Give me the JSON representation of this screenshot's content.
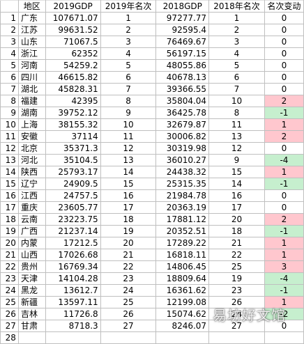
{
  "header": [
    "",
    "地区",
    "2019GDP",
    "2019年名次",
    "2018GDP",
    "2018年名次",
    "名次变动"
  ],
  "rows": [
    [
      "1",
      "广东",
      "107671.07",
      "1",
      "97277.77",
      "1",
      "0",
      ""
    ],
    [
      "2",
      "江苏",
      "99631.52",
      "2",
      "92595.4",
      "2",
      "0",
      ""
    ],
    [
      "3",
      "山东",
      "71067.5",
      "3",
      "76469.67",
      "3",
      "0",
      ""
    ],
    [
      "4",
      "浙江",
      "62352",
      "4",
      "56197.15",
      "4",
      "0",
      ""
    ],
    [
      "5",
      "河南",
      "54259.2",
      "5",
      "48055.86",
      "5",
      "0",
      ""
    ],
    [
      "6",
      "四川",
      "46615.82",
      "6",
      "40678.13",
      "6",
      "0",
      ""
    ],
    [
      "7",
      "湖北",
      "45828.31",
      "7",
      "39366.55",
      "7",
      "0",
      ""
    ],
    [
      "8",
      "福建",
      "42395",
      "8",
      "35804.04",
      "10",
      "2",
      "up"
    ],
    [
      "9",
      "湖南",
      "39752.12",
      "9",
      "36425.78",
      "8",
      "-1",
      "down"
    ],
    [
      "10",
      "上海",
      "38155.32",
      "10",
      "32679.87",
      "11",
      "1",
      "up"
    ],
    [
      "11",
      "安徽",
      "37114",
      "11",
      "30006.82",
      "13",
      "2",
      "up"
    ],
    [
      "12",
      "北京",
      "35371.3",
      "12",
      "30319.98",
      "12",
      "0",
      ""
    ],
    [
      "13",
      "河北",
      "35104.5",
      "13",
      "36010.27",
      "9",
      "-4",
      "down"
    ],
    [
      "14",
      "陕西",
      "25793.17",
      "14",
      "24438.32",
      "15",
      "1",
      "up"
    ],
    [
      "15",
      "辽宁",
      "24909.5",
      "15",
      "25315.35",
      "14",
      "-1",
      "down"
    ],
    [
      "16",
      "江西",
      "24757.5",
      "16",
      "21984.78",
      "16",
      "0",
      ""
    ],
    [
      "17",
      "重庆",
      "23605.77",
      "17",
      "20363.19",
      "17",
      "0",
      ""
    ],
    [
      "18",
      "云南",
      "23223.75",
      "18",
      "17881.12",
      "20",
      "2",
      "up"
    ],
    [
      "19",
      "广西",
      "21237.14",
      "19",
      "20352.51",
      "18",
      "-1",
      "down"
    ],
    [
      "20",
      "内蒙",
      "17212.5",
      "20",
      "17289.22",
      "21",
      "1",
      "up"
    ],
    [
      "21",
      "山西",
      "17026.68",
      "21",
      "16818.11",
      "22",
      "1",
      "up"
    ],
    [
      "22",
      "贵州",
      "16769.34",
      "22",
      "14806.45",
      "25",
      "3",
      "up"
    ],
    [
      "23",
      "天津",
      "14104.28",
      "23",
      "18809.64",
      "19",
      "-4",
      "down"
    ],
    [
      "24",
      "黑龙",
      "13612.7",
      "24",
      "16361.62",
      "23",
      "-1",
      "down"
    ],
    [
      "25",
      "新疆",
      "13597.11",
      "25",
      "12199.08",
      "26",
      "1",
      "up"
    ],
    [
      "26",
      "吉林",
      "11726.8",
      "26",
      "15074.62",
      "24",
      "-2",
      "down"
    ],
    [
      "27",
      "甘肃",
      "8718.3",
      "27",
      "8246.07",
      "27",
      "0",
      ""
    ],
    [
      "28",
      "",
      "",
      "",
      "",
      "",
      "",
      ""
    ]
  ],
  "watermark": "易坊好文馆",
  "colors": {
    "increase_fill": "#ffc7ce",
    "decrease_fill": "#c6efce",
    "grid": "#bfbfbf"
  }
}
